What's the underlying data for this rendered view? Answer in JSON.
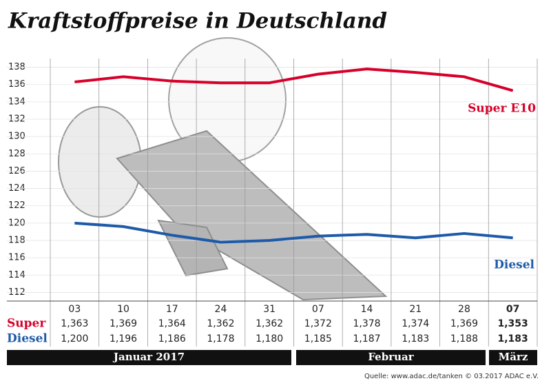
{
  "chart_data": {
    "type": "line",
    "title": "Kraftstoffpreise in Deutschland",
    "categories": [
      "03",
      "10",
      "17",
      "24",
      "31",
      "07",
      "14",
      "21",
      "28",
      "07"
    ],
    "series": [
      {
        "name": "Super E10",
        "row_label": "Super",
        "color": "#d6002a",
        "values": [
          136.3,
          136.9,
          136.4,
          136.2,
          136.2,
          137.2,
          137.8,
          137.4,
          136.9,
          135.3
        ],
        "value_labels": [
          "1,363",
          "1,369",
          "1,364",
          "1,362",
          "1,362",
          "1,372",
          "1,378",
          "1,374",
          "1,369",
          "1,353"
        ]
      },
      {
        "name": "Diesel",
        "row_label": "Diesel",
        "color": "#1e5aa8",
        "values": [
          120.0,
          119.6,
          118.6,
          117.8,
          118.0,
          118.5,
          118.7,
          118.3,
          118.8,
          118.3
        ],
        "value_labels": [
          "1,200",
          "1,196",
          "1,186",
          "1,178",
          "1,180",
          "1,185",
          "1,187",
          "1,183",
          "1,188",
          "1,183"
        ]
      }
    ],
    "ylim": [
      111,
      139
    ],
    "yticks": [
      112,
      114,
      116,
      118,
      120,
      122,
      124,
      126,
      128,
      130,
      132,
      134,
      136,
      138
    ],
    "months": [
      "Januar 2017",
      "Februar",
      "März"
    ],
    "source": "Quelle: www.adac.de/tanken  © 03.2017  ADAC e.V."
  }
}
